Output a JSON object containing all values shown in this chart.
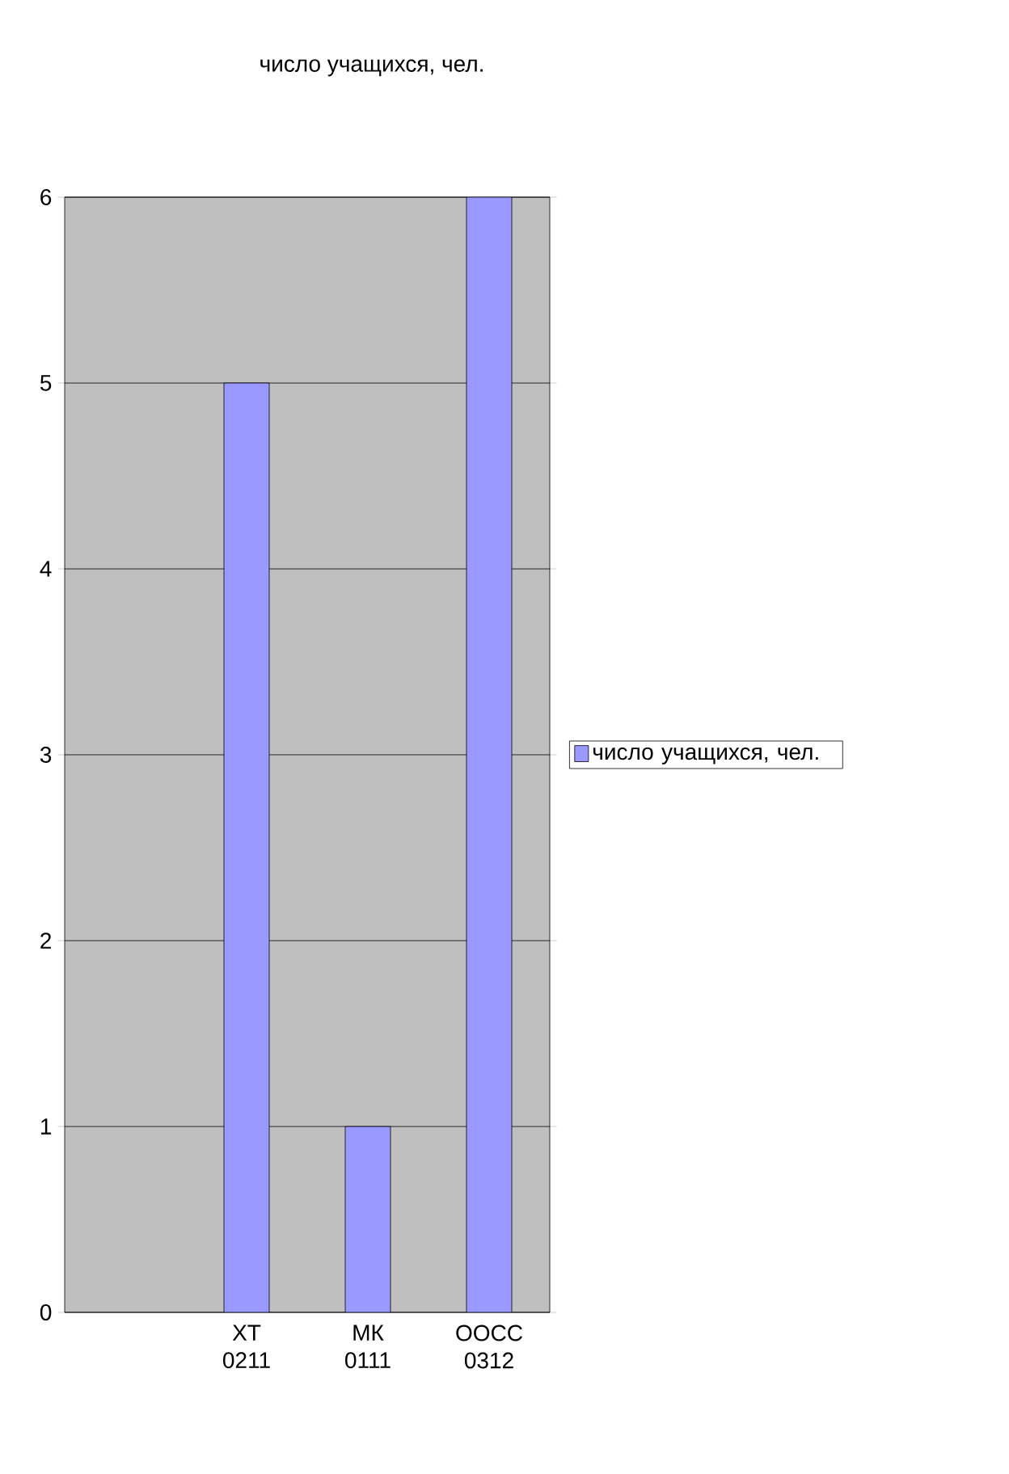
{
  "chart_data": {
    "type": "bar",
    "title": "число  учащихся, чел.",
    "categories": [
      null,
      "ХТ 0211",
      "МК 0111",
      "ООСС 0312"
    ],
    "series": [
      {
        "name": "число  учащихся, чел.",
        "color": "#9999ff",
        "values": [
          null,
          5,
          1,
          6
        ]
      }
    ],
    "ylim": [
      0,
      6
    ],
    "yticks": [
      0,
      1,
      2,
      3,
      4,
      5,
      6
    ],
    "grid": "y",
    "legend": "right"
  }
}
